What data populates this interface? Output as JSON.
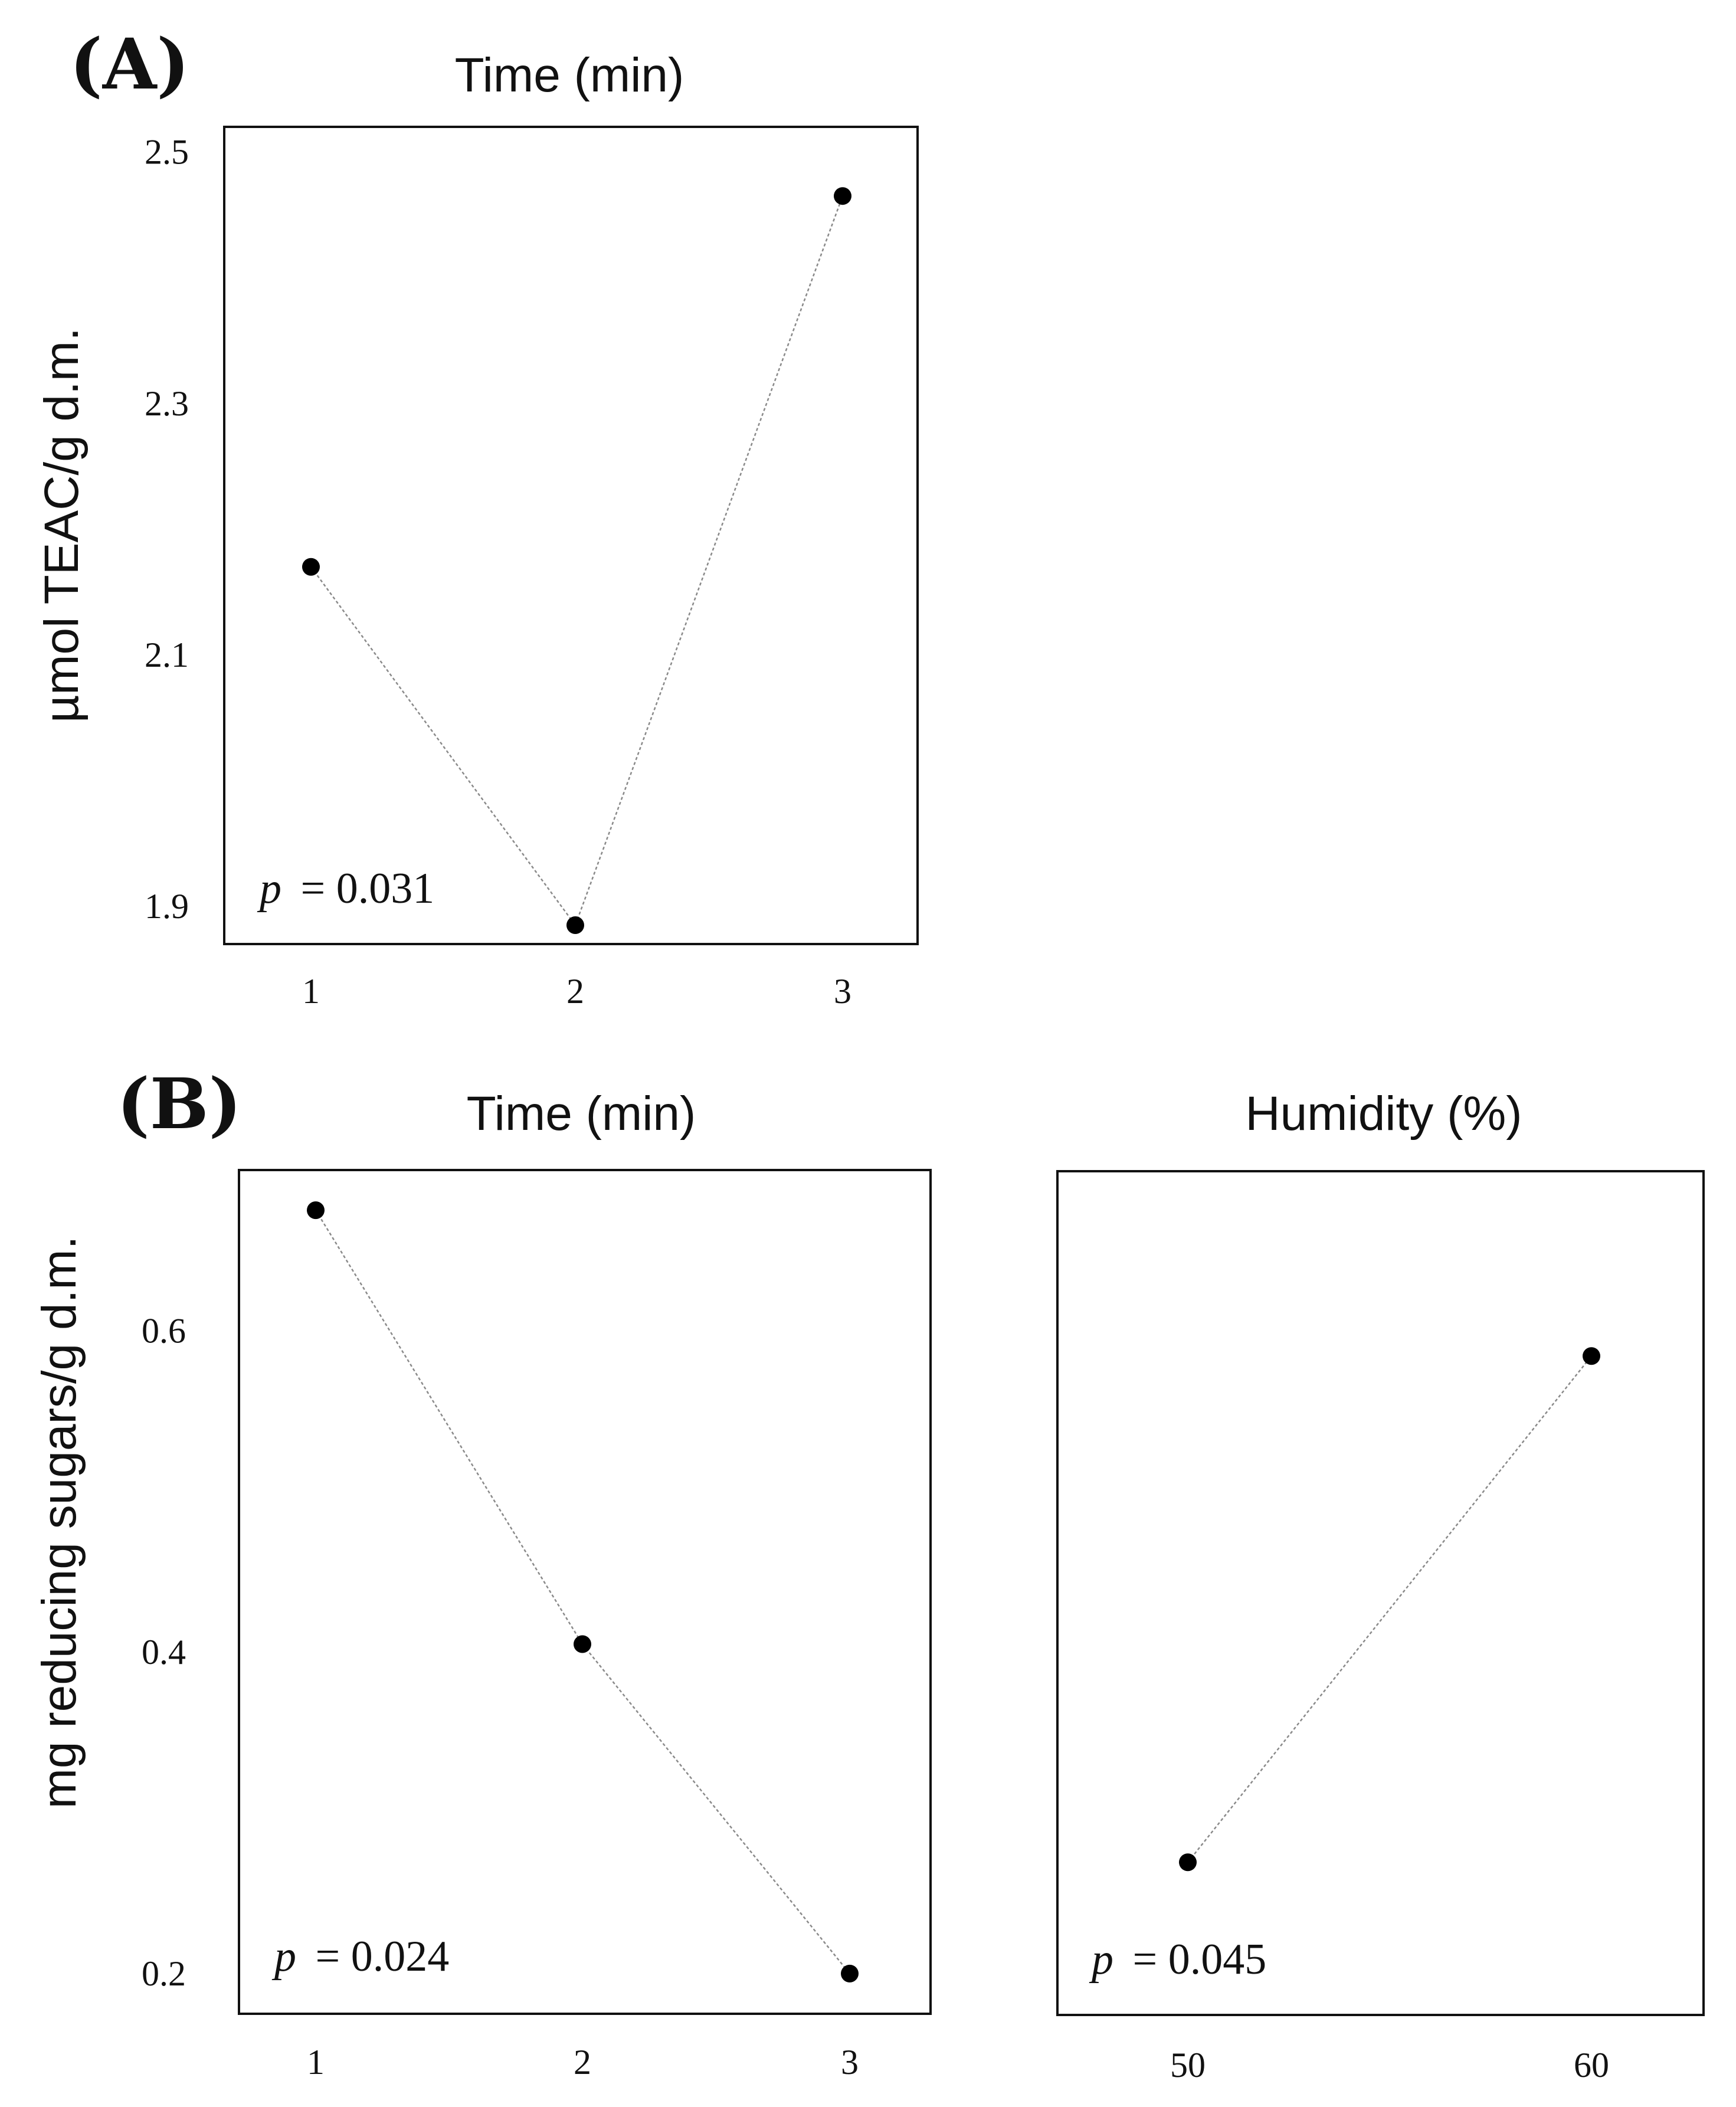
{
  "chart_data": [
    {
      "type": "line",
      "panel_label": "(A)",
      "title": "Time (min)",
      "xlabel": "",
      "ylabel": "µmol TEAC/g d.m.",
      "categories": [
        "1",
        "2",
        "3"
      ],
      "values": [
        2.17,
        1.885,
        2.465
      ],
      "yticks": [
        "1.9",
        "2.1",
        "2.3",
        "2.5"
      ],
      "ylim": [
        1.87,
        2.52
      ],
      "annotation": {
        "p_symbol": "p",
        "p_text": "= 0.031"
      }
    },
    {
      "type": "line",
      "panel_label": "(B)",
      "title": "Time (min)",
      "xlabel": "",
      "ylabel": "mg reducing sugars/g d.m.",
      "categories": [
        "1",
        "2",
        "3"
      ],
      "values": [
        0.675,
        0.405,
        0.2
      ],
      "yticks": [
        "0.2",
        "0.4",
        "0.6"
      ],
      "ylim": [
        0.175,
        0.7
      ],
      "annotation": {
        "p_symbol": "p",
        "p_text": "= 0.024"
      }
    },
    {
      "type": "line",
      "panel_label": "",
      "title": "Humidity (%)",
      "xlabel": "",
      "ylabel": "",
      "categories": [
        "50",
        "60"
      ],
      "values": [
        0.27,
        0.585
      ],
      "yticks": [],
      "ylim": [
        0.175,
        0.7
      ],
      "annotation": {
        "p_symbol": "p",
        "p_text": "= 0.045"
      }
    }
  ]
}
